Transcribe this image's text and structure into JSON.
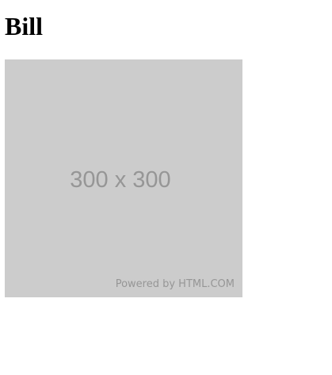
{
  "page": {
    "title": "Bill"
  },
  "image_placeholder": {
    "size_text": "300 x 300",
    "credit_text": "Powered by HTML.COM",
    "background_color": "#cccccc",
    "text_color": "#969696"
  }
}
